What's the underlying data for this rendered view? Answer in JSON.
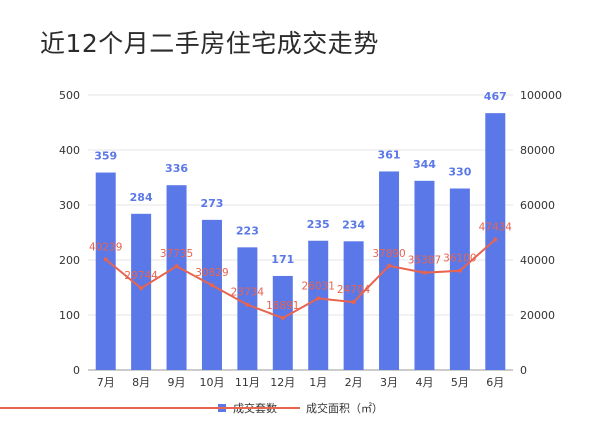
{
  "title": "近12个月二手房住宅成交走势",
  "chart_data": {
    "type": "bar",
    "categories": [
      "7月",
      "8月",
      "9月",
      "10月",
      "11月",
      "12月",
      "1月",
      "2月",
      "3月",
      "4月",
      "5月",
      "6月"
    ],
    "series": [
      {
        "name": "成交套数",
        "type": "bar",
        "axis": "left",
        "color": "#5b78e8",
        "values": [
          359,
          284,
          336,
          273,
          223,
          171,
          235,
          234,
          361,
          344,
          330,
          467
        ]
      },
      {
        "name": "成交面积（㎡）",
        "type": "line",
        "axis": "right",
        "color": "#e8644f",
        "values": [
          40239,
          29744,
          37735,
          30829,
          23734,
          18891,
          26031,
          24704,
          37890,
          35387,
          36100,
          47434
        ],
        "labels": [
          "40239",
          "29744",
          "37735",
          "30829",
          "23734",
          "18891",
          "26031",
          "24704",
          "37890",
          "35387",
          "36100",
          "47434"
        ]
      }
    ],
    "y_left": {
      "min": 0,
      "max": 500,
      "ticks": [
        0,
        100,
        200,
        300,
        400,
        500
      ]
    },
    "y_right": {
      "min": 0,
      "max": 100000,
      "ticks": [
        0,
        20000,
        40000,
        60000,
        80000,
        100000
      ]
    },
    "grid": true,
    "legend_position": "bottom"
  },
  "legend": {
    "bar": "成交套数",
    "line": "成交面积（㎡）"
  }
}
